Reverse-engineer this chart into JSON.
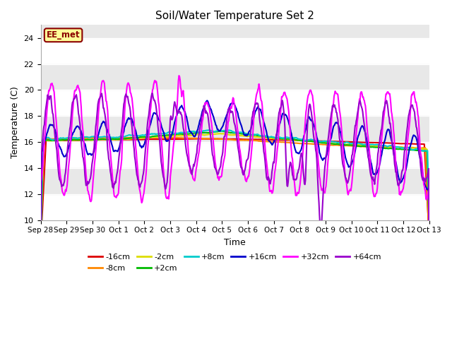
{
  "title": "Soil/Water Temperature Set 2",
  "xlabel": "Time",
  "ylabel": "Temperature (C)",
  "ylim": [
    10,
    25
  ],
  "yticks": [
    10,
    12,
    14,
    16,
    18,
    20,
    22,
    24
  ],
  "fig_bg": "#ffffff",
  "plot_bg": "#e8e8e8",
  "band_color": "#f5f5f5",
  "label_box_text": "EE_met",
  "label_box_bg": "#ffff99",
  "label_box_border": "#8B0000",
  "series": {
    "-16cm": {
      "color": "#dd0000",
      "lw": 1.5
    },
    "-8cm": {
      "color": "#ff8800",
      "lw": 1.5
    },
    "-2cm": {
      "color": "#dddd00",
      "lw": 1.5
    },
    "+2cm": {
      "color": "#00bb00",
      "lw": 1.5
    },
    "+8cm": {
      "color": "#00cccc",
      "lw": 1.5
    },
    "+16cm": {
      "color": "#0000cc",
      "lw": 1.5
    },
    "+32cm": {
      "color": "#ff00ff",
      "lw": 1.5
    },
    "+64cm": {
      "color": "#9900cc",
      "lw": 1.5
    }
  },
  "xtick_labels": [
    "Sep 28",
    "Sep 29",
    "Sep 30",
    "Oct 1",
    "Oct 2",
    "Oct 3",
    "Oct 4",
    "Oct 5",
    "Oct 6",
    "Oct 7",
    "Oct 8",
    "Oct 9",
    "Oct 10",
    "Oct 11",
    "Oct 12",
    "Oct 13"
  ],
  "n_points": 720,
  "n_days": 15
}
